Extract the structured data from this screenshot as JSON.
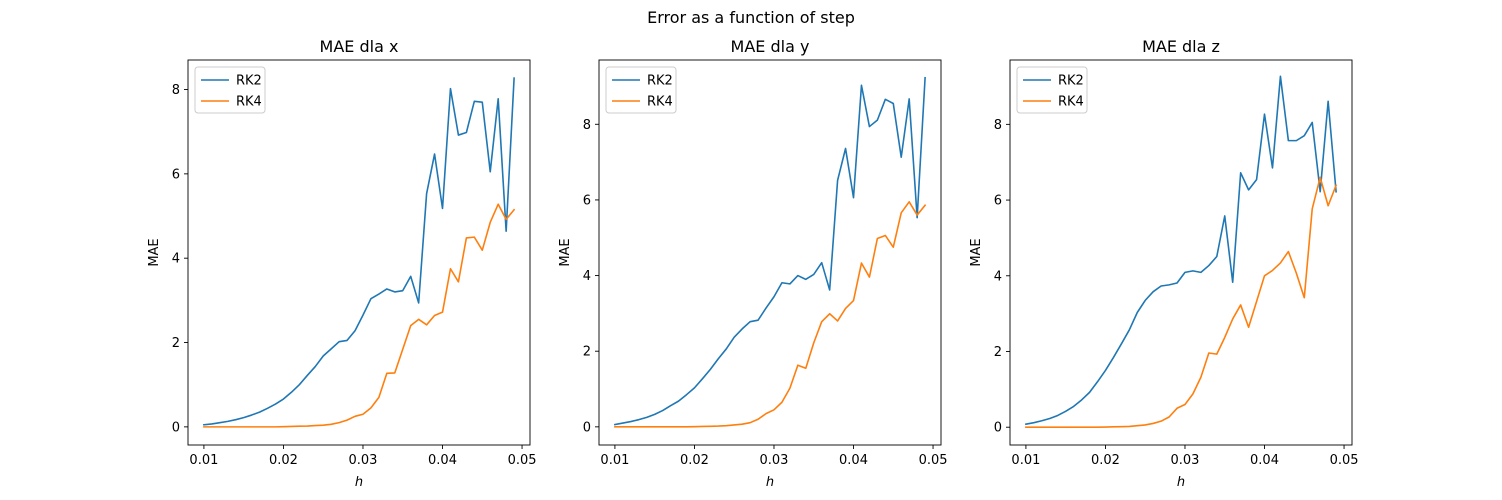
{
  "figure": {
    "suptitle": "Error as a function of step"
  },
  "colors": {
    "rk2": "#1f77b4",
    "rk4": "#ff7f0e"
  },
  "chart_data": [
    {
      "type": "line",
      "title": "MAE dla x",
      "xlabel": "h",
      "ylabel": "MAE",
      "xlim": [
        0.008,
        0.051
      ],
      "ylim": [
        -0.43,
        8.7
      ],
      "xticks": [
        0.01,
        0.02,
        0.03,
        0.04,
        0.05
      ],
      "xtick_labels": [
        "0.01",
        "0.02",
        "0.03",
        "0.04",
        "0.05"
      ],
      "yticks": [
        0,
        2,
        4,
        6,
        8
      ],
      "ytick_labels": [
        "0",
        "2",
        "4",
        "6",
        "8"
      ],
      "legend": "top-left",
      "x": [
        0.01,
        0.011,
        0.012,
        0.013,
        0.014,
        0.015,
        0.016,
        0.017,
        0.018,
        0.019,
        0.02,
        0.021,
        0.022,
        0.023,
        0.024,
        0.025,
        0.026,
        0.027,
        0.028,
        0.029,
        0.03,
        0.031,
        0.032,
        0.033,
        0.034,
        0.035,
        0.036,
        0.037,
        0.038,
        0.039,
        0.04,
        0.041,
        0.042,
        0.043,
        0.044,
        0.045,
        0.046,
        0.047,
        0.048,
        0.049
      ],
      "series": [
        {
          "name": "RK2",
          "color": "#1f77b4",
          "values": [
            0.05,
            0.07,
            0.1,
            0.13,
            0.17,
            0.22,
            0.28,
            0.35,
            0.44,
            0.54,
            0.66,
            0.82,
            1.0,
            1.22,
            1.43,
            1.68,
            1.85,
            2.02,
            2.05,
            2.28,
            2.65,
            3.04,
            3.15,
            3.27,
            3.2,
            3.23,
            3.57,
            2.94,
            5.53,
            6.47,
            5.18,
            8.02,
            6.92,
            6.98,
            7.72,
            7.7,
            6.05,
            7.78,
            4.64,
            8.27
          ]
        },
        {
          "name": "RK4",
          "color": "#ff7f0e",
          "values": [
            0.0,
            0.0,
            0.0,
            0.0,
            0.0,
            0.0,
            0.0,
            0.0,
            0.0,
            0.0,
            0.005,
            0.01,
            0.015,
            0.02,
            0.03,
            0.04,
            0.06,
            0.1,
            0.16,
            0.25,
            0.3,
            0.45,
            0.7,
            1.27,
            1.28,
            1.84,
            2.4,
            2.55,
            2.42,
            2.64,
            2.72,
            3.75,
            3.44,
            4.48,
            4.5,
            4.19,
            4.85,
            5.28,
            4.92,
            5.15
          ]
        }
      ]
    },
    {
      "type": "line",
      "title": "MAE dla y",
      "xlabel": "h",
      "ylabel": "MAE",
      "xlim": [
        0.008,
        0.051
      ],
      "ylim": [
        -0.48,
        9.7
      ],
      "xticks": [
        0.01,
        0.02,
        0.03,
        0.04,
        0.05
      ],
      "xtick_labels": [
        "0.01",
        "0.02",
        "0.03",
        "0.04",
        "0.05"
      ],
      "yticks": [
        0,
        2,
        4,
        6,
        8
      ],
      "ytick_labels": [
        "0",
        "2",
        "4",
        "6",
        "8"
      ],
      "legend": "top-left",
      "x": [
        0.01,
        0.011,
        0.012,
        0.013,
        0.014,
        0.015,
        0.016,
        0.017,
        0.018,
        0.019,
        0.02,
        0.021,
        0.022,
        0.023,
        0.024,
        0.025,
        0.026,
        0.027,
        0.028,
        0.029,
        0.03,
        0.031,
        0.032,
        0.033,
        0.034,
        0.035,
        0.036,
        0.037,
        0.038,
        0.039,
        0.04,
        0.041,
        0.042,
        0.043,
        0.044,
        0.045,
        0.046,
        0.047,
        0.048,
        0.049
      ],
      "series": [
        {
          "name": "RK2",
          "color": "#1f77b4",
          "values": [
            0.06,
            0.1,
            0.14,
            0.19,
            0.25,
            0.33,
            0.43,
            0.56,
            0.68,
            0.85,
            1.03,
            1.27,
            1.52,
            1.8,
            2.06,
            2.37,
            2.59,
            2.78,
            2.82,
            3.14,
            3.44,
            3.81,
            3.78,
            4.0,
            3.9,
            4.03,
            4.34,
            3.62,
            6.52,
            7.36,
            6.06,
            9.03,
            7.94,
            8.11,
            8.66,
            8.55,
            7.13,
            8.67,
            5.53,
            9.23
          ]
        },
        {
          "name": "RK4",
          "color": "#ff7f0e",
          "values": [
            0.0,
            0.0,
            0.0,
            0.0,
            0.0,
            0.0,
            0.0,
            0.0,
            0.0,
            0.0,
            0.005,
            0.01,
            0.015,
            0.02,
            0.03,
            0.05,
            0.07,
            0.11,
            0.2,
            0.35,
            0.45,
            0.65,
            1.02,
            1.63,
            1.55,
            2.22,
            2.78,
            2.99,
            2.8,
            3.13,
            3.34,
            4.33,
            3.96,
            4.98,
            5.06,
            4.75,
            5.66,
            5.95,
            5.6,
            5.86
          ]
        }
      ]
    },
    {
      "type": "line",
      "title": "MAE dla z",
      "xlabel": "h",
      "ylabel": "MAE",
      "xlim": [
        0.008,
        0.051
      ],
      "ylim": [
        -0.47,
        9.7
      ],
      "xticks": [
        0.01,
        0.02,
        0.03,
        0.04,
        0.05
      ],
      "xtick_labels": [
        "0.01",
        "0.02",
        "0.03",
        "0.04",
        "0.05"
      ],
      "yticks": [
        0,
        2,
        4,
        6,
        8
      ],
      "ytick_labels": [
        "0",
        "2",
        "4",
        "6",
        "8"
      ],
      "legend": "top-left",
      "x": [
        0.01,
        0.011,
        0.012,
        0.013,
        0.014,
        0.015,
        0.016,
        0.017,
        0.018,
        0.019,
        0.02,
        0.021,
        0.022,
        0.023,
        0.024,
        0.025,
        0.026,
        0.027,
        0.028,
        0.029,
        0.03,
        0.031,
        0.032,
        0.033,
        0.034,
        0.035,
        0.036,
        0.037,
        0.038,
        0.039,
        0.04,
        0.041,
        0.042,
        0.043,
        0.044,
        0.045,
        0.046,
        0.047,
        0.048,
        0.049
      ],
      "series": [
        {
          "name": "RK2",
          "color": "#1f77b4",
          "values": [
            0.08,
            0.12,
            0.17,
            0.23,
            0.31,
            0.42,
            0.55,
            0.72,
            0.92,
            1.2,
            1.5,
            1.84,
            2.2,
            2.57,
            3.03,
            3.35,
            3.58,
            3.73,
            3.76,
            3.81,
            4.09,
            4.13,
            4.09,
            4.27,
            4.51,
            5.58,
            3.83,
            6.72,
            6.27,
            6.54,
            8.27,
            6.85,
            9.27,
            7.57,
            7.57,
            7.7,
            8.05,
            6.22,
            8.61,
            6.22
          ]
        },
        {
          "name": "RK4",
          "color": "#ff7f0e",
          "values": [
            0.0,
            0.0,
            0.0,
            0.0,
            0.0,
            0.0,
            0.0,
            0.0,
            0.0,
            0.0,
            0.005,
            0.01,
            0.015,
            0.02,
            0.04,
            0.06,
            0.1,
            0.16,
            0.27,
            0.5,
            0.6,
            0.88,
            1.32,
            1.96,
            1.93,
            2.37,
            2.86,
            3.23,
            2.64,
            3.32,
            4.0,
            4.14,
            4.34,
            4.64,
            4.07,
            3.42,
            5.77,
            6.6,
            5.85,
            6.39
          ]
        }
      ]
    }
  ]
}
